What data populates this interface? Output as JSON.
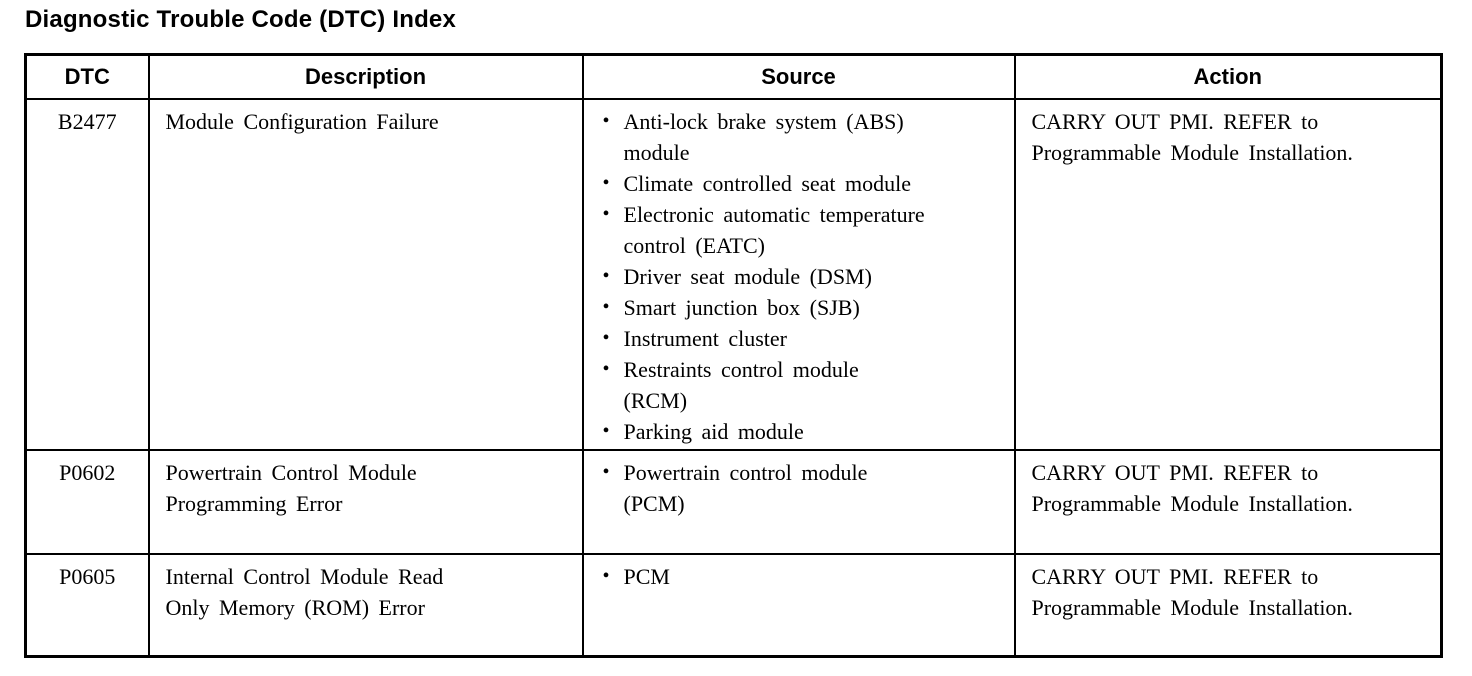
{
  "page": {
    "title": "Diagnostic Trouble Code (DTC) Index"
  },
  "table": {
    "columns": [
      "DTC",
      "Description",
      "Source",
      "Action"
    ],
    "rows": [
      {
        "dtc": "B2477",
        "description": "Module Configuration Failure",
        "source": [
          "Anti-lock brake system (ABS) module",
          "Climate controlled seat module",
          "Electronic automatic temperature control (EATC)",
          "Driver seat module (DSM)",
          "Smart junction box (SJB)",
          "Instrument cluster",
          "Restraints control module (RCM)",
          "Parking aid module"
        ],
        "action": "CARRY OUT PMI. REFER to Programmable Module Installation."
      },
      {
        "dtc": "P0602",
        "description": "Powertrain Control Module Programming Error",
        "source": [
          "Powertrain control module (PCM)"
        ],
        "action": "CARRY OUT PMI. REFER to Programmable Module Installation."
      },
      {
        "dtc": "P0605",
        "description": "Internal Control Module Read Only Memory (ROM) Error",
        "source": [
          "PCM"
        ],
        "action": "CARRY OUT PMI. REFER to Programmable Module Installation."
      }
    ]
  }
}
